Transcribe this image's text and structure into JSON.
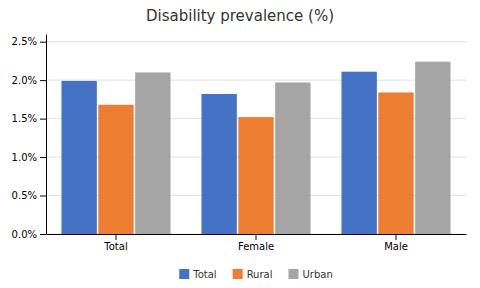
{
  "chart_data": {
    "type": "bar",
    "title": "Disability prevalence (%)",
    "categories": [
      "Total",
      "Female",
      "Male"
    ],
    "series": [
      {
        "name": "Total",
        "color": "#4472C4",
        "values": [
          0.0199,
          0.0182,
          0.0211
        ]
      },
      {
        "name": "Rural",
        "color": "#ED7D31",
        "values": [
          0.0168,
          0.0152,
          0.0184
        ]
      },
      {
        "name": "Urban",
        "color": "#A5A5A5",
        "values": [
          0.021,
          0.0197,
          0.0224
        ]
      }
    ],
    "ylim": [
      0.0,
      0.026
    ],
    "yticks": [
      {
        "value": 0.0,
        "label": "0.0%"
      },
      {
        "value": 0.005,
        "label": "0.5%"
      },
      {
        "value": 0.01,
        "label": "1.0%"
      },
      {
        "value": 0.015,
        "label": "1.5%"
      },
      {
        "value": 0.02,
        "label": "2.0%"
      },
      {
        "value": 0.025,
        "label": "2.5%"
      }
    ],
    "grid": true,
    "legend": "bottom"
  }
}
